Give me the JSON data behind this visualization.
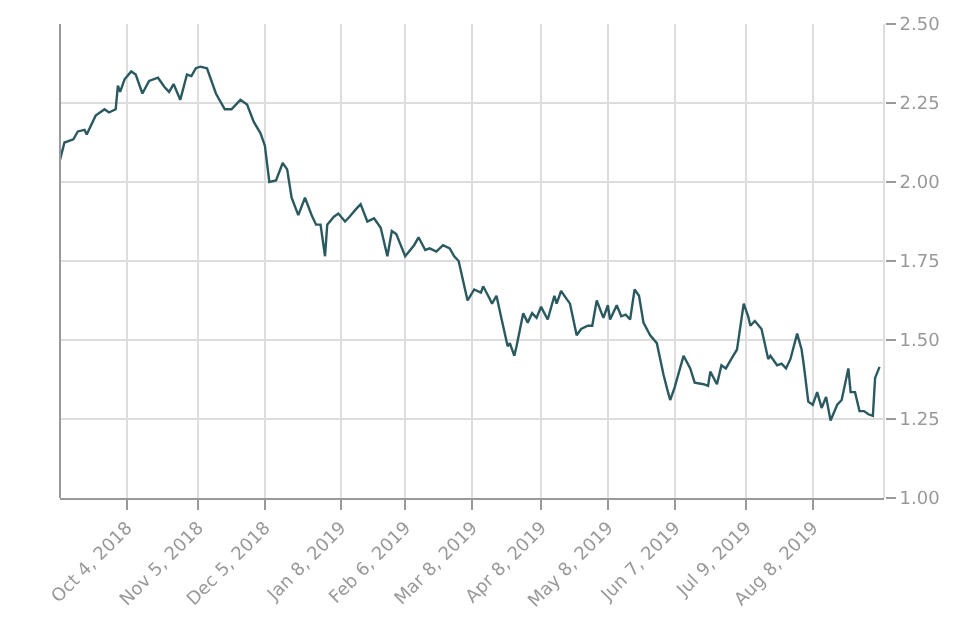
{
  "chart_data": {
    "type": "line",
    "x": [
      "2018-09-04",
      "2018-09-06",
      "2018-09-10",
      "2018-09-12",
      "2018-09-15",
      "2018-09-16",
      "2018-09-20",
      "2018-09-24",
      "2018-09-26",
      "2018-09-29",
      "2018-09-30",
      "2018-10-01",
      "2018-10-03",
      "2018-10-06",
      "2018-10-08",
      "2018-10-11",
      "2018-10-14",
      "2018-10-18",
      "2018-10-21",
      "2018-10-23",
      "2018-10-25",
      "2018-10-28",
      "2018-10-31",
      "2018-11-02",
      "2018-11-04",
      "2018-11-06",
      "2018-11-09",
      "2018-11-13",
      "2018-11-17",
      "2018-11-20",
      "2018-11-24",
      "2018-11-27",
      "2018-11-30",
      "2018-12-03",
      "2018-12-05",
      "2018-12-07",
      "2018-12-10",
      "2018-12-13",
      "2018-12-15",
      "2018-12-17",
      "2018-12-20",
      "2018-12-23",
      "2018-12-26",
      "2018-12-28",
      "2018-12-30",
      "2019-01-01",
      "2019-01-02",
      "2019-01-05",
      "2019-01-07",
      "2019-01-10",
      "2019-01-12",
      "2019-01-15",
      "2019-01-17",
      "2019-01-20",
      "2019-01-23",
      "2019-01-26",
      "2019-01-29",
      "2019-01-31",
      "2019-02-02",
      "2019-02-06",
      "2019-02-10",
      "2019-02-12",
      "2019-02-15",
      "2019-02-17",
      "2019-02-20",
      "2019-02-23",
      "2019-02-26",
      "2019-02-28",
      "2019-03-02",
      "2019-03-06",
      "2019-03-09",
      "2019-03-12",
      "2019-03-13",
      "2019-03-16",
      "2019-03-17",
      "2019-03-19",
      "2019-03-21",
      "2019-03-24",
      "2019-03-25",
      "2019-03-27",
      "2019-03-28",
      "2019-03-31",
      "2019-04-02",
      "2019-04-04",
      "2019-04-06",
      "2019-04-08",
      "2019-04-11",
      "2019-04-14",
      "2019-04-15",
      "2019-04-17",
      "2019-04-19",
      "2019-04-21",
      "2019-04-24",
      "2019-04-26",
      "2019-04-29",
      "2019-05-01",
      "2019-05-03",
      "2019-05-06",
      "2019-05-08",
      "2019-05-09",
      "2019-05-12",
      "2019-05-14",
      "2019-05-16",
      "2019-05-18",
      "2019-05-20",
      "2019-05-22",
      "2019-05-24",
      "2019-05-27",
      "2019-05-30",
      "2019-06-02",
      "2019-06-04",
      "2019-06-05",
      "2019-06-07",
      "2019-06-11",
      "2019-06-14",
      "2019-06-16",
      "2019-06-20",
      "2019-06-22",
      "2019-06-23",
      "2019-06-26",
      "2019-06-28",
      "2019-06-30",
      "2019-07-02",
      "2019-07-05",
      "2019-07-08",
      "2019-07-10",
      "2019-07-11",
      "2019-07-13",
      "2019-07-16",
      "2019-07-19",
      "2019-07-20",
      "2019-07-23",
      "2019-07-25",
      "2019-07-27",
      "2019-07-29",
      "2019-08-01",
      "2019-08-03",
      "2019-08-04",
      "2019-08-06",
      "2019-08-08",
      "2019-08-10",
      "2019-08-12",
      "2019-08-14",
      "2019-08-16",
      "2019-08-19",
      "2019-08-21",
      "2019-08-24",
      "2019-08-25",
      "2019-08-27",
      "2019-08-29",
      "2019-08-31",
      "2019-09-02",
      "2019-09-04",
      "2019-09-05",
      "2019-09-07"
    ],
    "series": [
      {
        "color": "#2a5a60",
        "values": [
          2.07,
          2.125,
          2.135,
          2.16,
          2.165,
          2.15,
          2.21,
          2.23,
          2.22,
          2.23,
          2.305,
          2.285,
          2.325,
          2.35,
          2.34,
          2.28,
          2.32,
          2.33,
          2.3,
          2.285,
          2.31,
          2.26,
          2.34,
          2.335,
          2.36,
          2.365,
          2.36,
          2.28,
          2.23,
          2.23,
          2.26,
          2.245,
          2.19,
          2.155,
          2.115,
          2.0,
          2.005,
          2.06,
          2.04,
          1.95,
          1.895,
          1.95,
          1.895,
          1.865,
          1.865,
          1.765,
          1.865,
          1.89,
          1.9,
          1.875,
          1.89,
          1.915,
          1.93,
          1.875,
          1.885,
          1.855,
          1.765,
          1.845,
          1.835,
          1.765,
          1.8,
          1.825,
          1.785,
          1.79,
          1.78,
          1.8,
          1.79,
          1.765,
          1.75,
          1.625,
          1.66,
          1.65,
          1.67,
          1.63,
          1.615,
          1.64,
          1.575,
          1.48,
          1.49,
          1.45,
          1.48,
          1.585,
          1.555,
          1.585,
          1.57,
          1.605,
          1.565,
          1.64,
          1.615,
          1.655,
          1.635,
          1.615,
          1.515,
          1.535,
          1.545,
          1.545,
          1.625,
          1.57,
          1.61,
          1.565,
          1.61,
          1.575,
          1.58,
          1.565,
          1.66,
          1.64,
          1.555,
          1.515,
          1.49,
          1.39,
          1.335,
          1.31,
          1.35,
          1.45,
          1.41,
          1.365,
          1.36,
          1.355,
          1.4,
          1.36,
          1.42,
          1.41,
          1.435,
          1.47,
          1.615,
          1.575,
          1.545,
          1.56,
          1.535,
          1.44,
          1.45,
          1.42,
          1.425,
          1.41,
          1.44,
          1.52,
          1.47,
          1.42,
          1.305,
          1.295,
          1.335,
          1.285,
          1.32,
          1.245,
          1.295,
          1.31,
          1.41,
          1.335,
          1.335,
          1.275,
          1.275,
          1.265,
          1.26,
          1.38,
          1.415
        ]
      }
    ],
    "xlim": [
      "2018-09-04",
      "2019-09-09"
    ],
    "xticks": [
      {
        "value": "2018-10-04",
        "label": "Oct 4, 2018"
      },
      {
        "value": "2018-11-05",
        "label": "Nov 5, 2018"
      },
      {
        "value": "2018-12-05",
        "label": "Dec 5, 2018"
      },
      {
        "value": "2019-01-08",
        "label": "Jan 8, 2019"
      },
      {
        "value": "2019-02-06",
        "label": "Feb 6, 2019"
      },
      {
        "value": "2019-03-08",
        "label": "Mar 8, 2019"
      },
      {
        "value": "2019-04-08",
        "label": "Apr 8, 2019"
      },
      {
        "value": "2019-05-08",
        "label": "May 8, 2019"
      },
      {
        "value": "2019-06-07",
        "label": "Jun 7, 2019"
      },
      {
        "value": "2019-07-09",
        "label": "Jul 9, 2019"
      },
      {
        "value": "2019-08-08",
        "label": "Aug 8, 2019"
      }
    ],
    "ylim": [
      1.0,
      2.5
    ],
    "yticks": [
      {
        "value": 1.0,
        "label": "1.00"
      },
      {
        "value": 1.25,
        "label": "1.25"
      },
      {
        "value": 1.5,
        "label": "1.50"
      },
      {
        "value": 1.75,
        "label": "1.75"
      },
      {
        "value": 2.0,
        "label": "2.00"
      },
      {
        "value": 2.25,
        "label": "2.25"
      },
      {
        "value": 2.5,
        "label": "2.50"
      }
    ],
    "grid": true,
    "marker": "none",
    "line_style": "solid"
  }
}
